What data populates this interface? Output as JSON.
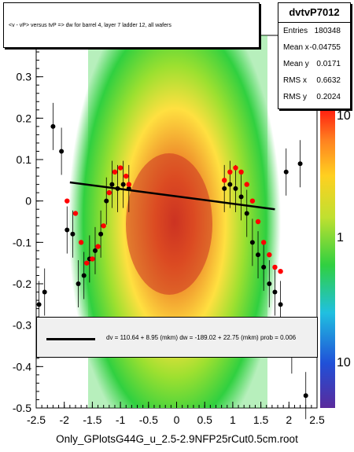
{
  "chart_data": {
    "type": "scatter",
    "title": "<v - vP>       versus  tvP =>  dw for barrel 4, layer 7 ladder 12, all wafers",
    "xlim": [
      -2.5,
      2.5
    ],
    "ylim": [
      -0.5,
      0.4
    ],
    "x_ticks": [
      "-2.5",
      "-2",
      "-1.5",
      "-1",
      "-0.5",
      "0",
      "0.5",
      "1",
      "1.5",
      "2",
      "2.5"
    ],
    "y_ticks": [
      "-0.5",
      "-0.4",
      "-0.3",
      "-0.2",
      "-0.1",
      "0",
      "0.1",
      "0.2",
      "0.3"
    ],
    "z_ticks": [
      "10",
      "1",
      "10"
    ],
    "stats": {
      "name": "dvtvP7012",
      "rows": [
        {
          "key": "Entries",
          "value": "180348"
        },
        {
          "key": "Mean x",
          "value": "-0.04755"
        },
        {
          "key": "Mean y",
          "value": "0.0171"
        },
        {
          "key": "RMS x",
          "value": "0.6632"
        },
        {
          "key": "RMS y",
          "value": "0.2024"
        }
      ]
    },
    "fit": {
      "label": "dv =  110.64 +  8.95 (mkm) dw = -189.02 +  22.75 (mkm) prob = 0.006",
      "x": [
        -1.9,
        1.75
      ],
      "y": [
        0.045,
        -0.02
      ]
    },
    "black_profile": {
      "x": [
        -2.45,
        -2.35,
        -2.2,
        -2.05,
        -1.95,
        -1.85,
        -1.75,
        -1.65,
        -1.55,
        -1.45,
        -1.35,
        -1.25,
        -1.15,
        -1.05,
        -0.95,
        -0.85,
        0.85,
        0.95,
        1.05,
        1.15,
        1.25,
        1.35,
        1.45,
        1.55,
        1.65,
        1.75,
        1.85,
        1.95,
        2.05,
        2.2,
        2.3
      ],
      "y": [
        -0.25,
        -0.22,
        0.18,
        0.12,
        -0.07,
        -0.08,
        -0.2,
        -0.18,
        -0.14,
        -0.12,
        -0.08,
        0.0,
        0.04,
        0.03,
        0.04,
        0.03,
        0.03,
        0.04,
        0.03,
        0.01,
        -0.03,
        -0.1,
        -0.13,
        -0.16,
        -0.2,
        -0.22,
        -0.25,
        0.07,
        -0.36,
        0.09,
        -0.47
      ]
    },
    "red_profile": {
      "x": [
        -1.95,
        -1.8,
        -1.7,
        -1.6,
        -1.5,
        -1.4,
        -1.3,
        -1.2,
        -1.1,
        -1.0,
        -0.9,
        -0.85,
        0.85,
        0.95,
        1.05,
        1.15,
        1.25,
        1.35,
        1.45,
        1.55,
        1.65,
        1.75,
        1.85
      ],
      "y": [
        0.0,
        -0.03,
        -0.1,
        -0.15,
        -0.14,
        -0.11,
        -0.06,
        0.02,
        0.07,
        0.08,
        0.06,
        0.04,
        0.05,
        0.07,
        0.08,
        0.07,
        0.04,
        0.0,
        -0.05,
        -0.1,
        -0.13,
        -0.16,
        -0.17
      ]
    }
  },
  "footer": "Only_GPlotsG44G_u_2.5-2.9NFP25rCut0.5cm.root"
}
